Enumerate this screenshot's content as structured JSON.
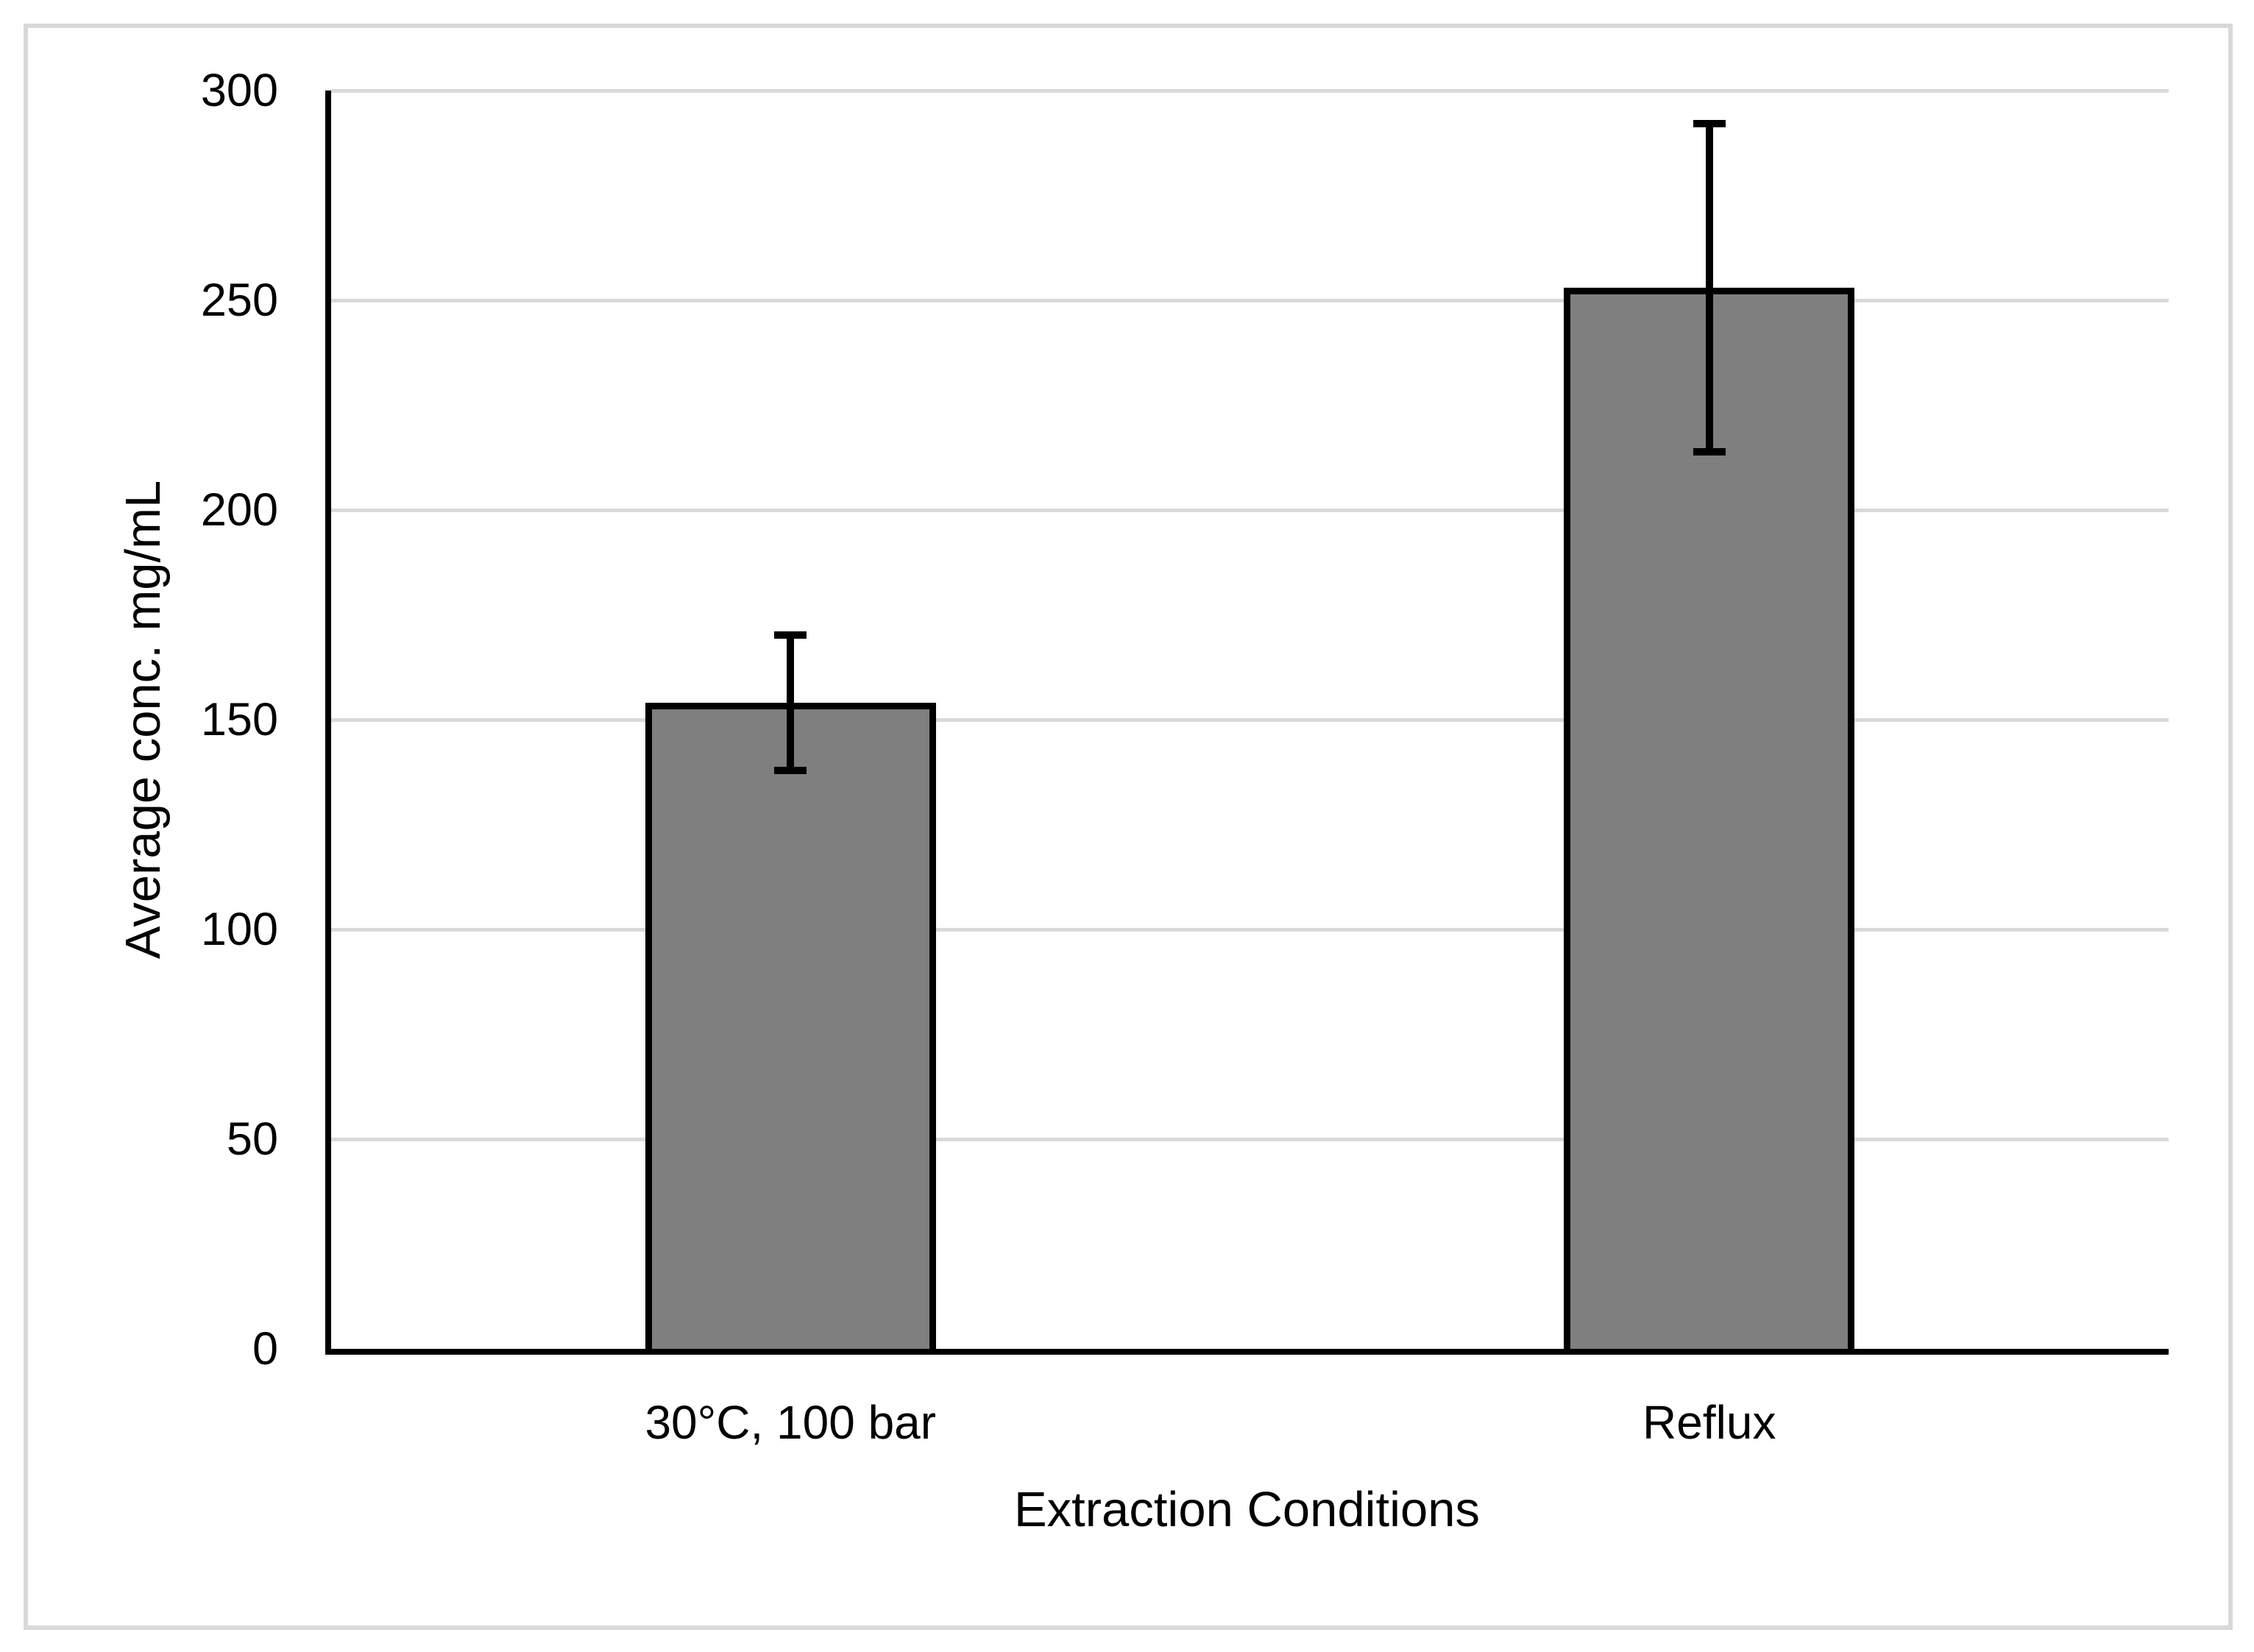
{
  "chart_data": {
    "type": "bar",
    "title": "",
    "categories": [
      "30°C, 100 bar",
      "Reflux"
    ],
    "values": [
      154,
      253
    ],
    "errors": [
      17,
      40
    ],
    "xlabel": "Extraction Conditions",
    "ylabel": "Average conc. mg/mL",
    "ylim": [
      0,
      300
    ],
    "yticks": [
      0,
      50,
      100,
      150,
      200,
      250,
      300
    ],
    "grid": "horizontal-major",
    "legend": "none",
    "colors": {
      "bar_fill": "#7f7f7f",
      "bar_border": "#000000",
      "error_bar": "#000000",
      "axis_line": "#000000",
      "gridline": "#d9d9d9",
      "frame_border": "#d9d9d9",
      "text": "#000000",
      "background": "#ffffff"
    }
  }
}
